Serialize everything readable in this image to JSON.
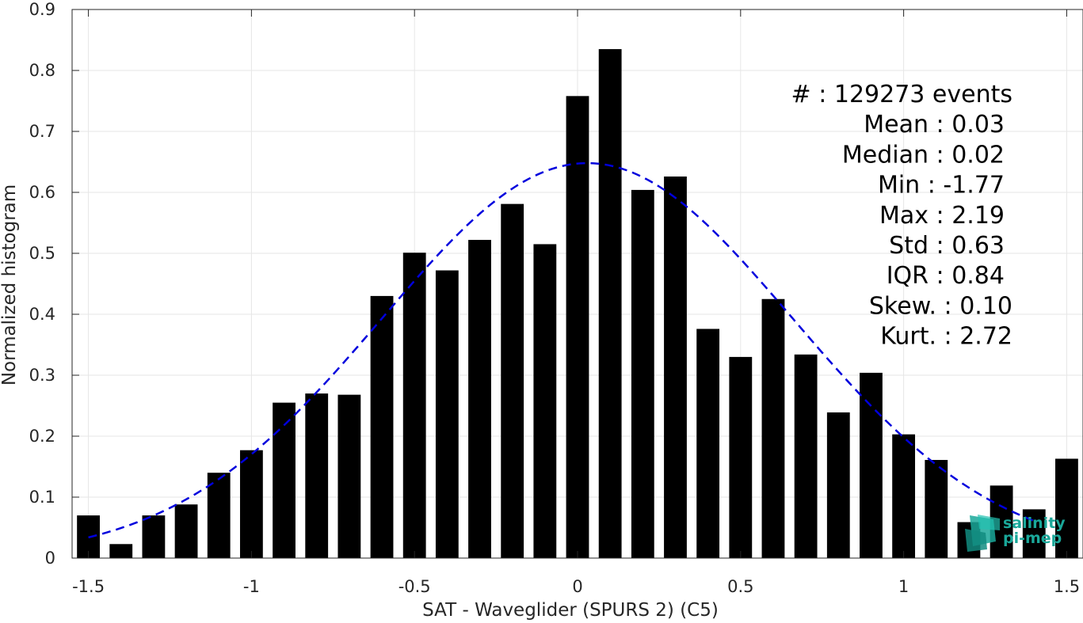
{
  "chart_data": {
    "type": "bar",
    "xlabel": "SAT - Waveglider (SPURS 2) (C5)",
    "ylabel": "Normalized histogram",
    "xlim": [
      -1.55,
      1.55
    ],
    "ylim": [
      0,
      0.9
    ],
    "xticks": [
      -1.5,
      -1,
      -0.5,
      0,
      0.5,
      1,
      1.5
    ],
    "xtick_labels": [
      "-1.5",
      "-1",
      "-0.5",
      "0",
      "0.5",
      "1",
      "1.5"
    ],
    "yticks": [
      0,
      0.1,
      0.2,
      0.3,
      0.4,
      0.5,
      0.6,
      0.7,
      0.8,
      0.9
    ],
    "ytick_labels": [
      "0",
      "0.1",
      "0.2",
      "0.3",
      "0.4",
      "0.5",
      "0.6",
      "0.7",
      "0.8",
      "0.9"
    ],
    "grid": true,
    "bar_color": "#000000",
    "bar_width": 0.07,
    "x": [
      -1.5,
      -1.4,
      -1.3,
      -1.2,
      -1.1,
      -1.0,
      -0.9,
      -0.8,
      -0.7,
      -0.6,
      -0.5,
      -0.4,
      -0.3,
      -0.2,
      -0.1,
      0.0,
      0.1,
      0.2,
      0.3,
      0.4,
      0.5,
      0.6,
      0.7,
      0.8,
      0.9,
      1.0,
      1.1,
      1.2,
      1.3,
      1.4,
      1.5
    ],
    "values": [
      0.07,
      0.023,
      0.07,
      0.088,
      0.14,
      0.177,
      0.255,
      0.27,
      0.268,
      0.43,
      0.501,
      0.472,
      0.522,
      0.581,
      0.515,
      0.758,
      0.835,
      0.604,
      0.626,
      0.376,
      0.33,
      0.425,
      0.334,
      0.239,
      0.304,
      0.203,
      0.161,
      0.059,
      0.119,
      0.08,
      0.163
    ],
    "fit_curve": {
      "kind": "normal",
      "mean": 0.03,
      "std": 0.63,
      "peak": 0.648,
      "x_range": [
        -1.5,
        1.4
      ],
      "color": "#0000dd",
      "style": "dashed"
    },
    "stats": [
      {
        "label": "#  : 129273 events"
      },
      {
        "label": "Mean : 0.03"
      },
      {
        "label": "Median : 0.02"
      },
      {
        "label": "Min : -1.77"
      },
      {
        "label": "Max : 2.19"
      },
      {
        "label": "Std : 0.63"
      },
      {
        "label": "IQR : 0.84"
      },
      {
        "label": "Skew. : 0.10"
      },
      {
        "label": "Kurt. : 2.72"
      }
    ]
  },
  "logo": {
    "line1": "salinity",
    "line2": "pi-mep",
    "color": "#1aa89a"
  }
}
